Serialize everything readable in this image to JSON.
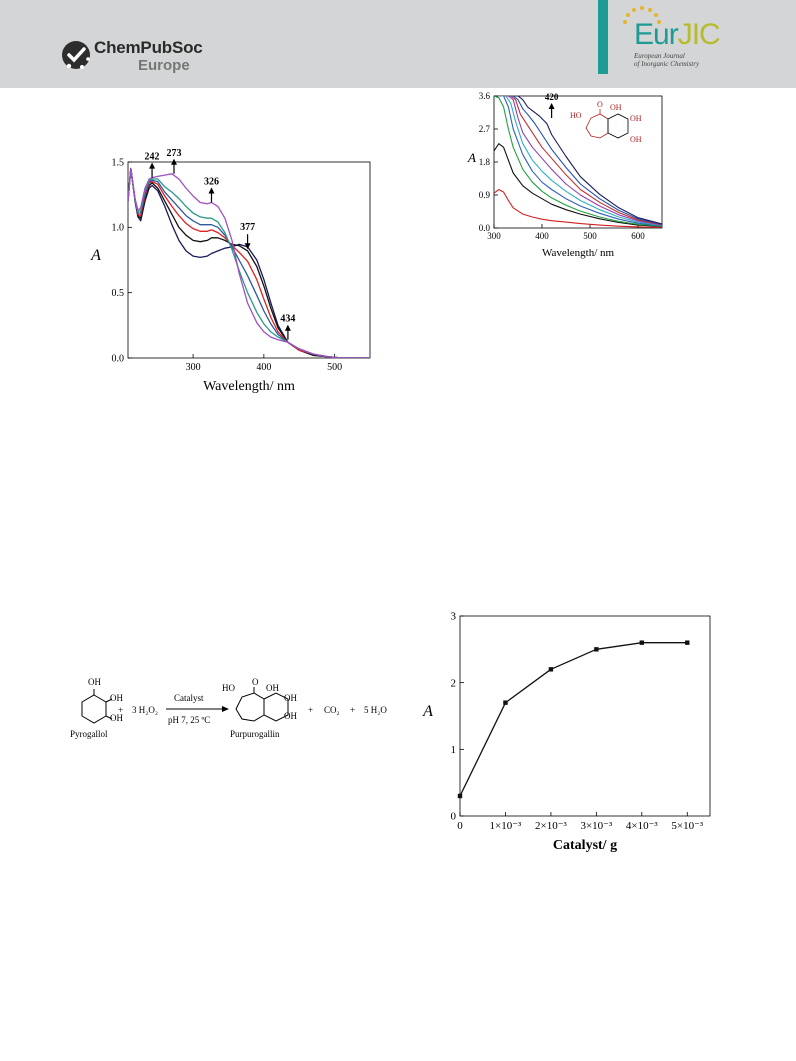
{
  "header": {
    "publisher": {
      "name": "ChemPubSoc",
      "region": "Europe"
    },
    "journal": {
      "name_part1": "Eur",
      "name_part2": "JIC",
      "subtitle_line1": "European Journal",
      "subtitle_line2": "of Inorganic Chemistry"
    },
    "colors": {
      "band": "#d4d5d6",
      "teal": "#1e9c94",
      "olive": "#b8bc2a",
      "gold": "#e4b52b"
    }
  },
  "chart_data": [
    {
      "type": "line",
      "xlabel": "Wavelength/ nm",
      "ylabel": "A",
      "xlim": [
        208,
        550
      ],
      "ylim": [
        0,
        1.5
      ],
      "xticks": [
        "300",
        "400",
        "500"
      ],
      "yticks": [
        "0.0",
        "0.5",
        "1.0",
        "1.5"
      ],
      "annotations": [
        {
          "label": "242",
          "x": 242,
          "y": 1.38,
          "arrow": "up"
        },
        {
          "label": "273",
          "x": 273,
          "y": 1.41,
          "arrow": "up"
        },
        {
          "label": "326",
          "x": 326,
          "y": 1.19,
          "arrow": "up"
        },
        {
          "label": "377",
          "x": 377,
          "y": 0.84,
          "arrow": "down"
        },
        {
          "label": "434",
          "x": 434,
          "y": 0.14,
          "arrow": "up"
        }
      ],
      "series": [
        {
          "color": "#1a1a5a",
          "x": [
            208,
            212,
            218,
            222,
            226,
            232,
            238,
            242,
            250,
            260,
            270,
            280,
            290,
            300,
            310,
            320,
            326,
            335,
            345,
            355,
            365,
            377,
            390,
            400,
            410,
            420,
            434,
            450,
            470,
            490,
            510,
            530,
            550
          ],
          "y": [
            1.2,
            1.45,
            1.2,
            1.08,
            1.05,
            1.2,
            1.3,
            1.32,
            1.28,
            1.16,
            1.02,
            0.9,
            0.82,
            0.78,
            0.77,
            0.78,
            0.8,
            0.82,
            0.84,
            0.85,
            0.87,
            0.85,
            0.75,
            0.6,
            0.42,
            0.25,
            0.12,
            0.06,
            0.02,
            0.01,
            0,
            0,
            0
          ]
        },
        {
          "color": "#111111",
          "x": [
            208,
            212,
            218,
            222,
            226,
            232,
            238,
            242,
            250,
            260,
            270,
            280,
            290,
            300,
            310,
            320,
            326,
            335,
            345,
            355,
            365,
            377,
            390,
            400,
            410,
            420,
            434,
            450,
            470,
            490,
            510,
            530,
            550
          ],
          "y": [
            1.2,
            1.45,
            1.2,
            1.09,
            1.07,
            1.22,
            1.32,
            1.34,
            1.3,
            1.2,
            1.1,
            1.0,
            0.94,
            0.9,
            0.89,
            0.9,
            0.92,
            0.92,
            0.9,
            0.87,
            0.86,
            0.82,
            0.7,
            0.55,
            0.38,
            0.23,
            0.12,
            0.06,
            0.02,
            0.01,
            0,
            0,
            0
          ]
        },
        {
          "color": "#e02020",
          "x": [
            208,
            212,
            218,
            222,
            226,
            232,
            238,
            242,
            250,
            260,
            270,
            280,
            290,
            300,
            310,
            320,
            326,
            335,
            345,
            355,
            365,
            377,
            390,
            400,
            410,
            420,
            434,
            450,
            470,
            490,
            510,
            530,
            550
          ],
          "y": [
            1.2,
            1.45,
            1.21,
            1.1,
            1.09,
            1.24,
            1.34,
            1.35,
            1.33,
            1.24,
            1.16,
            1.09,
            1.03,
            0.99,
            0.97,
            0.97,
            0.98,
            0.96,
            0.92,
            0.86,
            0.81,
            0.74,
            0.6,
            0.45,
            0.31,
            0.2,
            0.12,
            0.06,
            0.03,
            0.01,
            0,
            0,
            0
          ]
        },
        {
          "color": "#2c5aa0",
          "x": [
            208,
            212,
            218,
            222,
            226,
            232,
            238,
            242,
            250,
            260,
            270,
            280,
            290,
            300,
            310,
            320,
            326,
            335,
            345,
            355,
            365,
            377,
            390,
            400,
            410,
            420,
            434,
            450,
            470,
            490,
            510,
            530,
            550
          ],
          "y": [
            1.2,
            1.45,
            1.21,
            1.11,
            1.11,
            1.26,
            1.35,
            1.36,
            1.35,
            1.27,
            1.21,
            1.15,
            1.09,
            1.05,
            1.02,
            1.02,
            1.02,
            1.0,
            0.94,
            0.85,
            0.75,
            0.63,
            0.48,
            0.36,
            0.26,
            0.18,
            0.12,
            0.07,
            0.03,
            0.01,
            0,
            0,
            0
          ]
        },
        {
          "color": "#2a9a8a",
          "x": [
            208,
            212,
            218,
            222,
            226,
            232,
            238,
            242,
            250,
            260,
            270,
            280,
            290,
            300,
            310,
            320,
            326,
            335,
            345,
            355,
            365,
            377,
            390,
            400,
            410,
            420,
            434,
            450,
            470,
            490,
            510,
            530,
            550
          ],
          "y": [
            1.2,
            1.45,
            1.21,
            1.12,
            1.13,
            1.28,
            1.36,
            1.37,
            1.37,
            1.31,
            1.27,
            1.22,
            1.16,
            1.11,
            1.08,
            1.07,
            1.07,
            1.04,
            0.96,
            0.83,
            0.67,
            0.5,
            0.35,
            0.26,
            0.2,
            0.16,
            0.12,
            0.07,
            0.03,
            0.01,
            0,
            0,
            0
          ]
        },
        {
          "color": "#a050c0",
          "x": [
            208,
            212,
            218,
            222,
            226,
            232,
            238,
            242,
            250,
            260,
            270,
            280,
            290,
            300,
            310,
            320,
            326,
            335,
            345,
            355,
            365,
            377,
            390,
            400,
            410,
            420,
            434,
            450,
            470,
            490,
            510,
            530,
            550
          ],
          "y": [
            1.2,
            1.45,
            1.22,
            1.13,
            1.15,
            1.3,
            1.37,
            1.38,
            1.39,
            1.4,
            1.41,
            1.37,
            1.3,
            1.24,
            1.19,
            1.18,
            1.19,
            1.16,
            1.07,
            0.9,
            0.65,
            0.42,
            0.27,
            0.2,
            0.16,
            0.14,
            0.12,
            0.07,
            0.03,
            0.01,
            0,
            0,
            0
          ]
        }
      ]
    },
    {
      "type": "line",
      "xlabel": "Wavelength/ nm",
      "ylabel": "A",
      "xlim": [
        300,
        650
      ],
      "ylim": [
        0,
        3.6
      ],
      "xticks": [
        "300",
        "400",
        "500",
        "600"
      ],
      "yticks": [
        "0.0",
        "0.9",
        "1.8",
        "2.7",
        "3.6"
      ],
      "annotations": [
        {
          "label": "420",
          "x": 420,
          "y": 3.0,
          "arrow": "up"
        }
      ],
      "structure_labels": [
        "HO",
        "O",
        "OH",
        "OH",
        "OH"
      ],
      "series": [
        {
          "color": "#d02020",
          "x": [
            300,
            310,
            320,
            330,
            340,
            360,
            380,
            400,
            420,
            450,
            480,
            520,
            560,
            600,
            650
          ],
          "y": [
            0.95,
            1.05,
            0.98,
            0.75,
            0.55,
            0.38,
            0.3,
            0.24,
            0.2,
            0.16,
            0.12,
            0.08,
            0.05,
            0.03,
            0.02
          ]
        },
        {
          "color": "#111111",
          "x": [
            300,
            310,
            320,
            330,
            340,
            360,
            380,
            400,
            420,
            450,
            480,
            520,
            560,
            600,
            650
          ],
          "y": [
            2.1,
            2.3,
            2.2,
            1.85,
            1.5,
            1.15,
            0.95,
            0.8,
            0.65,
            0.5,
            0.38,
            0.25,
            0.15,
            0.08,
            0.04
          ]
        },
        {
          "color": "#20a040",
          "x": [
            300,
            310,
            320,
            330,
            340,
            360,
            380,
            400,
            420,
            450,
            480,
            520,
            560,
            600,
            650
          ],
          "y": [
            3.6,
            3.55,
            3.3,
            2.7,
            2.2,
            1.6,
            1.25,
            1.0,
            0.82,
            0.62,
            0.46,
            0.3,
            0.18,
            0.1,
            0.05
          ]
        },
        {
          "color": "#3060c0",
          "x": [
            310,
            320,
            330,
            340,
            360,
            380,
            400,
            420,
            450,
            480,
            520,
            560,
            600,
            650
          ],
          "y": [
            3.6,
            3.6,
            3.3,
            2.7,
            2.0,
            1.55,
            1.25,
            1.05,
            0.8,
            0.6,
            0.4,
            0.24,
            0.13,
            0.06
          ]
        },
        {
          "color": "#30b0c0",
          "x": [
            315,
            325,
            335,
            345,
            360,
            380,
            400,
            420,
            450,
            480,
            520,
            560,
            600,
            650
          ],
          "y": [
            3.6,
            3.6,
            3.4,
            2.9,
            2.3,
            1.85,
            1.55,
            1.3,
            1.0,
            0.75,
            0.5,
            0.3,
            0.16,
            0.07
          ]
        },
        {
          "color": "#9040b0",
          "x": [
            320,
            330,
            340,
            350,
            360,
            380,
            400,
            420,
            450,
            480,
            520,
            560,
            600,
            650
          ],
          "y": [
            3.6,
            3.6,
            3.5,
            3.0,
            2.6,
            2.2,
            1.9,
            1.6,
            1.2,
            0.9,
            0.6,
            0.36,
            0.19,
            0.08
          ]
        },
        {
          "color": "#c03030",
          "x": [
            325,
            335,
            345,
            355,
            365,
            380,
            400,
            420,
            450,
            480,
            520,
            560,
            600,
            650
          ],
          "y": [
            3.6,
            3.6,
            3.5,
            3.1,
            2.9,
            2.6,
            2.2,
            1.9,
            1.45,
            1.05,
            0.7,
            0.42,
            0.22,
            0.09
          ]
        },
        {
          "color": "#2050b0",
          "x": [
            330,
            340,
            350,
            360,
            370,
            385,
            400,
            420,
            450,
            480,
            520,
            560,
            600,
            650
          ],
          "y": [
            3.6,
            3.6,
            3.5,
            3.25,
            3.1,
            2.85,
            2.55,
            2.15,
            1.65,
            1.2,
            0.8,
            0.48,
            0.25,
            0.1
          ]
        },
        {
          "color": "#1a1a60",
          "x": [
            340,
            350,
            360,
            370,
            380,
            395,
            410,
            420,
            450,
            480,
            520,
            560,
            600,
            650
          ],
          "y": [
            3.6,
            3.6,
            3.5,
            3.3,
            3.2,
            3.05,
            2.85,
            2.55,
            1.95,
            1.4,
            0.92,
            0.55,
            0.28,
            0.11
          ]
        }
      ]
    },
    {
      "type": "line",
      "xlabel": "Catalyst/ g",
      "ylabel": "A",
      "xlim": [
        0,
        0.0055
      ],
      "ylim": [
        0,
        3
      ],
      "xticks": [
        "0",
        "1×10⁻³",
        "2×10⁻³",
        "3×10⁻³",
        "4×10⁻³",
        "5×10⁻³"
      ],
      "yticks": [
        "0",
        "1",
        "2",
        "3"
      ],
      "series": [
        {
          "color": "#111111",
          "x": [
            0,
            0.001,
            0.002,
            0.003,
            0.004,
            0.005
          ],
          "y": [
            0.3,
            1.7,
            2.2,
            2.5,
            2.6,
            2.6
          ]
        }
      ]
    }
  ],
  "scheme": {
    "reactant": "Pyrogallol",
    "reactant_groups": [
      "OH",
      "OH",
      "OH"
    ],
    "plus_1": "+",
    "reagent": "3 H₂O₂",
    "arrow_top": "Catalyst",
    "arrow_bottom": "pH 7, 25 ºC",
    "product": "Purpurogallin",
    "product_groups": [
      "HO",
      "O",
      "OH",
      "OH",
      "OH"
    ],
    "plus_2": "+",
    "co2": "CO₂",
    "plus_3": "+",
    "water": "5 H₂O"
  }
}
